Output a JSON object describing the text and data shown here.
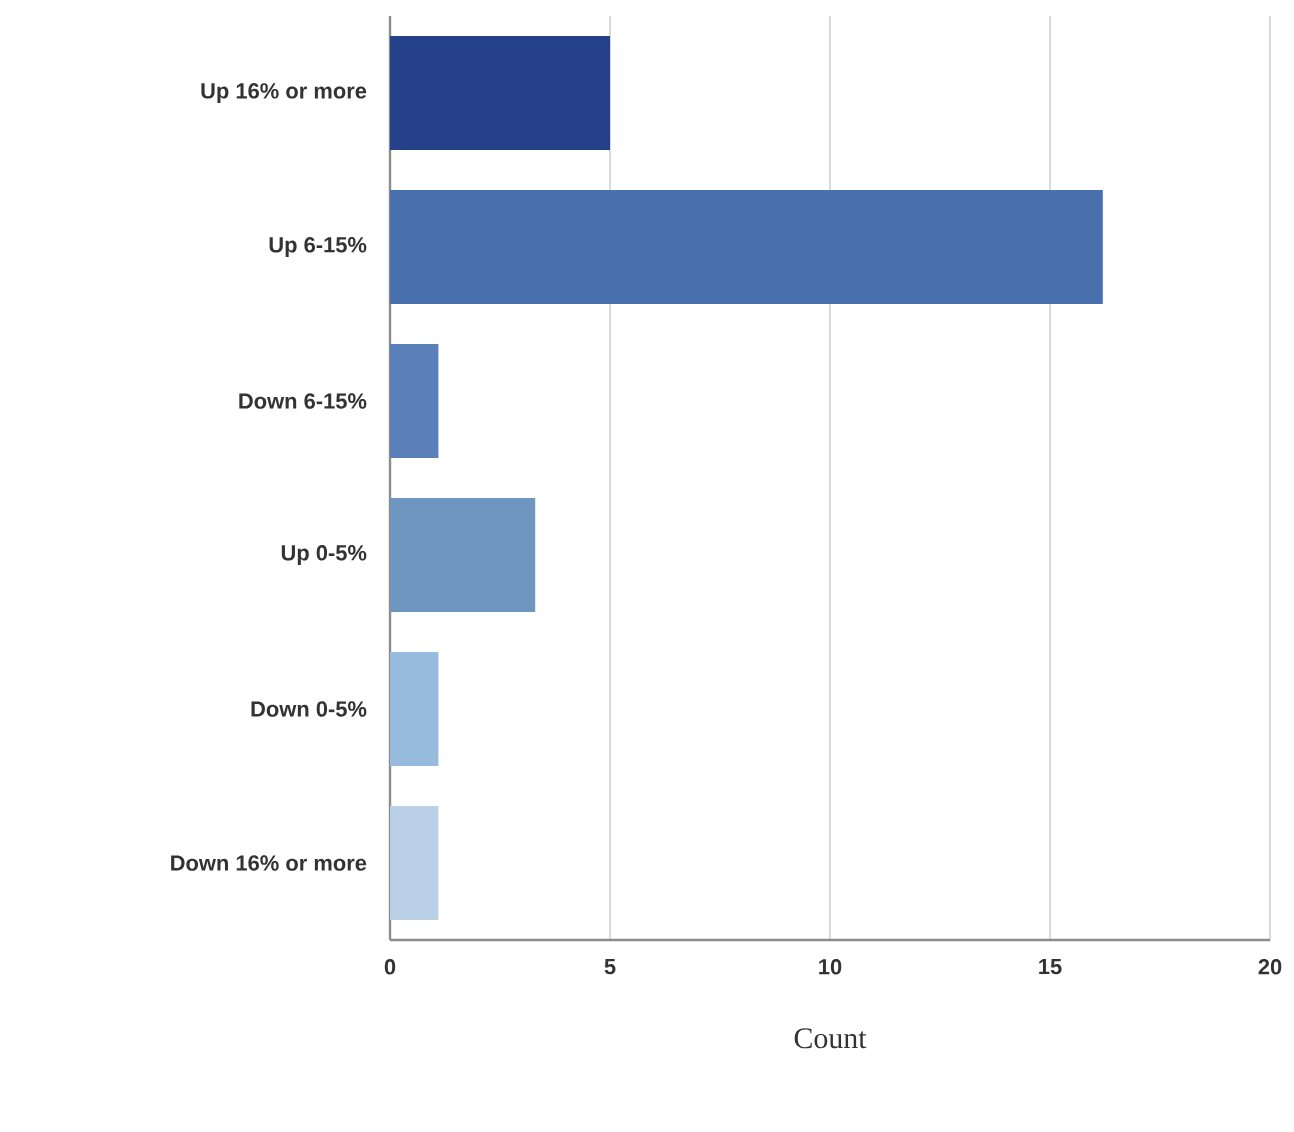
{
  "chart_data": {
    "type": "bar",
    "orientation": "horizontal",
    "xlabel": "Count",
    "categories": [
      "Up 16% or more",
      "Up 6-15%",
      "Down 6-15%",
      "Up 0-5%",
      "Down 0-5%",
      "Down 16% or more"
    ],
    "values": [
      5,
      16.2,
      1.1,
      3.3,
      1.1,
      1.1
    ],
    "colors": [
      "#25418c",
      "#4770ad",
      "#5b80b9",
      "#6f95c1",
      "#97bbdd",
      "#b9d0e6"
    ],
    "xlim": [
      0,
      20
    ],
    "xticks": [
      0,
      5,
      10,
      15,
      20
    ],
    "grid": "x"
  }
}
